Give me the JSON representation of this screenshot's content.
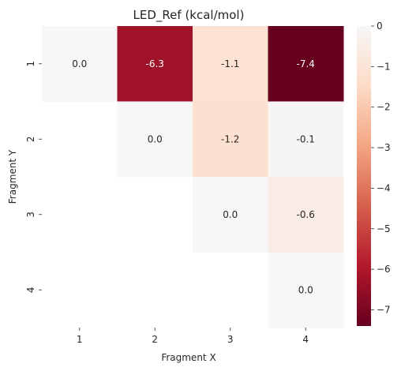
{
  "chart_data": {
    "type": "heatmap",
    "title": "LED_Ref (kcal/mol)",
    "xlabel": "Fragment X",
    "ylabel": "Fragment Y",
    "x_categories": [
      "1",
      "2",
      "3",
      "4"
    ],
    "y_categories": [
      "1",
      "2",
      "3",
      "4"
    ],
    "cells": [
      {
        "x": "1",
        "y": "1",
        "value": 0.0,
        "label": "0.0"
      },
      {
        "x": "2",
        "y": "1",
        "value": -6.3,
        "label": "-6.3"
      },
      {
        "x": "3",
        "y": "1",
        "value": -1.1,
        "label": "-1.1"
      },
      {
        "x": "4",
        "y": "1",
        "value": -7.4,
        "label": "-7.4"
      },
      {
        "x": "2",
        "y": "2",
        "value": 0.0,
        "label": "0.0"
      },
      {
        "x": "3",
        "y": "2",
        "value": -1.2,
        "label": "-1.2"
      },
      {
        "x": "4",
        "y": "2",
        "value": -0.1,
        "label": "-0.1"
      },
      {
        "x": "3",
        "y": "3",
        "value": 0.0,
        "label": "0.0"
      },
      {
        "x": "4",
        "y": "3",
        "value": -0.6,
        "label": "-0.6"
      },
      {
        "x": "4",
        "y": "4",
        "value": 0.0,
        "label": "0.0"
      }
    ],
    "colorbar": {
      "range": [
        -7.4,
        0.0
      ],
      "ticks": [
        "0",
        "−1",
        "−2",
        "−3",
        "−4",
        "−5",
        "−6",
        "−7"
      ],
      "colormap": "RdBu",
      "colors": [
        "#67001f",
        "#b2182b",
        "#d6604d",
        "#f4a582",
        "#fddbc7",
        "#f7f7f7"
      ]
    },
    "grid": false,
    "legend": "colorbar-right"
  }
}
